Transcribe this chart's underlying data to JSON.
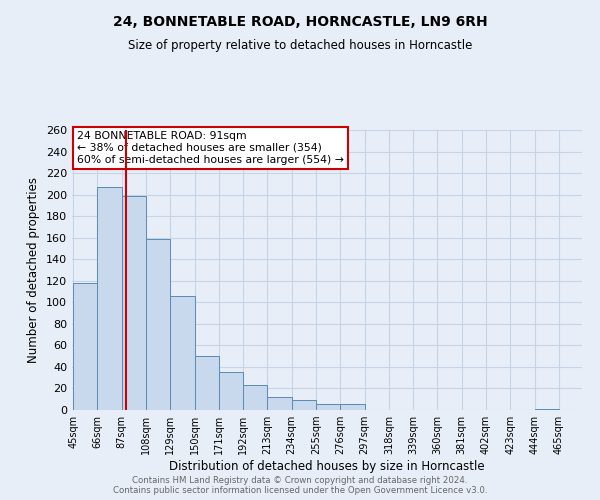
{
  "title": "24, BONNETABLE ROAD, HORNCASTLE, LN9 6RH",
  "subtitle": "Size of property relative to detached houses in Horncastle",
  "xlabel": "Distribution of detached houses by size in Horncastle",
  "ylabel": "Number of detached properties",
  "footer_line1": "Contains HM Land Registry data © Crown copyright and database right 2024.",
  "footer_line2": "Contains public sector information licensed under the Open Government Licence v3.0.",
  "bar_edges": [
    45,
    66,
    87,
    108,
    129,
    150,
    171,
    192,
    213,
    234,
    255,
    276,
    297,
    318,
    339,
    360,
    381,
    402,
    423,
    444,
    465
  ],
  "bar_heights": [
    118,
    207,
    199,
    159,
    106,
    50,
    35,
    23,
    12,
    9,
    6,
    6,
    0,
    0,
    0,
    0,
    0,
    0,
    0,
    1
  ],
  "bar_color": "#c8d9ed",
  "bar_edge_color": "#5a8ab5",
  "grid_color": "#c5d5e8",
  "vline_x": 91,
  "vline_color": "#cc0000",
  "ylim": [
    0,
    260
  ],
  "yticks": [
    0,
    20,
    40,
    60,
    80,
    100,
    120,
    140,
    160,
    180,
    200,
    220,
    240,
    260
  ],
  "annotation_title": "24 BONNETABLE ROAD: 91sqm",
  "annotation_line1": "← 38% of detached houses are smaller (354)",
  "annotation_line2": "60% of semi-detached houses are larger (554) →",
  "annotation_box_color": "#ffffff",
  "annotation_box_edge": "#cc0000",
  "bg_color": "#e8eef7"
}
